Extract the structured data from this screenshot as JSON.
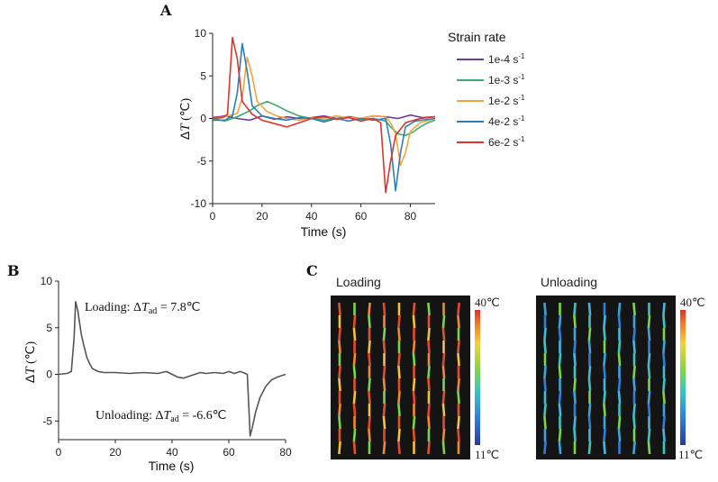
{
  "chart_data": [
    {
      "panel": "A",
      "type": "line",
      "title": "",
      "xlabel": "Time (s)",
      "ylabel": "ΔT (℃)",
      "xlim": [
        0,
        90
      ],
      "ylim": [
        -10,
        10
      ],
      "xticks": [
        0,
        20,
        40,
        60,
        80
      ],
      "yticks": [
        -10,
        -5,
        0,
        5,
        10
      ],
      "legend": {
        "title": "Strain rate",
        "position": "right"
      },
      "series": [
        {
          "name": "1e-4 s",
          "sup": "-1",
          "color": "#6a3d9a",
          "points": [
            [
              0,
              0.1
            ],
            [
              5,
              0.3
            ],
            [
              10,
              0.0
            ],
            [
              15,
              -0.2
            ],
            [
              20,
              0.3
            ],
            [
              25,
              -0.1
            ],
            [
              30,
              0.2
            ],
            [
              35,
              0.0
            ],
            [
              40,
              0.1
            ],
            [
              45,
              0.3
            ],
            [
              50,
              0.0
            ],
            [
              55,
              0.2
            ],
            [
              60,
              0.0
            ],
            [
              65,
              0.3
            ],
            [
              70,
              0.2
            ],
            [
              75,
              0.0
            ],
            [
              80,
              0.4
            ],
            [
              85,
              0.1
            ],
            [
              90,
              0.2
            ]
          ]
        },
        {
          "name": "1e-3 s",
          "sup": "-1",
          "color": "#3aaa6e",
          "points": [
            [
              0,
              0.0
            ],
            [
              5,
              -0.3
            ],
            [
              10,
              0.2
            ],
            [
              15,
              0.9
            ],
            [
              18,
              1.5
            ],
            [
              22,
              2.0
            ],
            [
              26,
              1.5
            ],
            [
              30,
              0.9
            ],
            [
              35,
              0.3
            ],
            [
              40,
              0.0
            ],
            [
              45,
              -0.2
            ],
            [
              50,
              0.0
            ],
            [
              55,
              0.1
            ],
            [
              60,
              -0.1
            ],
            [
              65,
              0.0
            ],
            [
              70,
              -0.3
            ],
            [
              72,
              -1.0
            ],
            [
              75,
              -1.8
            ],
            [
              78,
              -2.0
            ],
            [
              81,
              -1.6
            ],
            [
              84,
              -1.0
            ],
            [
              87,
              -0.5
            ],
            [
              90,
              -0.2
            ]
          ]
        },
        {
          "name": "1e-2 s",
          "sup": "-1",
          "color": "#f5a33a",
          "points": [
            [
              0,
              0.0
            ],
            [
              5,
              0.2
            ],
            [
              10,
              0.6
            ],
            [
              12,
              2.5
            ],
            [
              14,
              7.2
            ],
            [
              16,
              5.0
            ],
            [
              18,
              2.0
            ],
            [
              22,
              0.8
            ],
            [
              26,
              0.3
            ],
            [
              30,
              0.0
            ],
            [
              35,
              -0.2
            ],
            [
              40,
              0.1
            ],
            [
              45,
              0.0
            ],
            [
              50,
              0.3
            ],
            [
              55,
              0.1
            ],
            [
              60,
              0.0
            ],
            [
              65,
              0.3
            ],
            [
              70,
              0.2
            ],
            [
              72,
              -0.5
            ],
            [
              74,
              -1.8
            ],
            [
              76,
              -5.5
            ],
            [
              78,
              -4.0
            ],
            [
              80,
              -1.5
            ],
            [
              84,
              -0.5
            ],
            [
              90,
              0.0
            ]
          ]
        },
        {
          "name": "4e-2 s",
          "sup": "-1",
          "color": "#2b7fb8",
          "points": [
            [
              0,
              -0.2
            ],
            [
              5,
              -0.2
            ],
            [
              8,
              0.3
            ],
            [
              10,
              3.0
            ],
            [
              12,
              8.8
            ],
            [
              14,
              5.5
            ],
            [
              16,
              1.5
            ],
            [
              20,
              0.3
            ],
            [
              25,
              0.0
            ],
            [
              30,
              -0.2
            ],
            [
              35,
              0.1
            ],
            [
              40,
              0.0
            ],
            [
              45,
              -0.4
            ],
            [
              50,
              0.0
            ],
            [
              55,
              -0.3
            ],
            [
              60,
              0.0
            ],
            [
              65,
              -0.2
            ],
            [
              70,
              0.0
            ],
            [
              72,
              -3.0
            ],
            [
              74,
              -8.5
            ],
            [
              76,
              -4.0
            ],
            [
              78,
              -1.0
            ],
            [
              82,
              -0.3
            ],
            [
              90,
              0.0
            ]
          ]
        },
        {
          "name": "6e-2 s",
          "sup": "-1",
          "color": "#e0332b",
          "points": [
            [
              0,
              0.0
            ],
            [
              4,
              0.1
            ],
            [
              6,
              0.5
            ],
            [
              8,
              9.5
            ],
            [
              10,
              7.0
            ],
            [
              12,
              2.0
            ],
            [
              16,
              0.5
            ],
            [
              20,
              -0.2
            ],
            [
              25,
              -0.6
            ],
            [
              30,
              -1.0
            ],
            [
              35,
              -0.5
            ],
            [
              40,
              0.0
            ],
            [
              45,
              0.2
            ],
            [
              50,
              -0.1
            ],
            [
              55,
              0.1
            ],
            [
              60,
              -0.3
            ],
            [
              65,
              0.0
            ],
            [
              68,
              -0.5
            ],
            [
              70,
              -8.7
            ],
            [
              72,
              -5.0
            ],
            [
              74,
              -2.0
            ],
            [
              78,
              -0.5
            ],
            [
              84,
              0.0
            ],
            [
              90,
              0.2
            ]
          ]
        }
      ]
    },
    {
      "panel": "B",
      "type": "line",
      "xlabel": "Time (s)",
      "ylabel": "ΔT (℃)",
      "xlim": [
        0,
        80
      ],
      "ylim": [
        -7,
        10
      ],
      "xticks": [
        0,
        20,
        40,
        60,
        80
      ],
      "xtick_labels": [
        "0",
        "20",
        "40",
        "60",
        "80"
      ],
      "yticks": [
        -5,
        0,
        5,
        10
      ],
      "series": [
        {
          "name": "ΔT",
          "color": "#555555",
          "points": [
            [
              0,
              0.0
            ],
            [
              3,
              0.1
            ],
            [
              4.5,
              0.3
            ],
            [
              5.5,
              4.0
            ],
            [
              6,
              7.8
            ],
            [
              6.8,
              6.8
            ],
            [
              8,
              4.3
            ],
            [
              9,
              3.0
            ],
            [
              10,
              1.8
            ],
            [
              11,
              1.1
            ],
            [
              12,
              0.6
            ],
            [
              14,
              0.3
            ],
            [
              16,
              0.2
            ],
            [
              20,
              0.2
            ],
            [
              25,
              0.1
            ],
            [
              30,
              0.2
            ],
            [
              35,
              0.1
            ],
            [
              38,
              0.3
            ],
            [
              40,
              0.0
            ],
            [
              42,
              -0.3
            ],
            [
              44,
              -0.4
            ],
            [
              46,
              -0.2
            ],
            [
              48,
              0.0
            ],
            [
              50,
              0.2
            ],
            [
              52,
              0.1
            ],
            [
              55,
              0.2
            ],
            [
              58,
              0.1
            ],
            [
              60,
              0.3
            ],
            [
              62,
              0.1
            ],
            [
              64,
              0.3
            ],
            [
              65,
              0.2
            ],
            [
              66.5,
              0.0
            ],
            [
              67.2,
              -4.5
            ],
            [
              67.5,
              -6.6
            ],
            [
              68.2,
              -5.8
            ],
            [
              69.5,
              -4.0
            ],
            [
              71,
              -2.5
            ],
            [
              73,
              -1.3
            ],
            [
              75,
              -0.6
            ],
            [
              77,
              -0.3
            ],
            [
              80,
              0.0
            ]
          ]
        }
      ],
      "annotations": {
        "loading_prefix": "Loading: Δ",
        "loading_T": "T",
        "loading_sub": "ad",
        "loading_value": " = 7.8℃",
        "unloading_prefix": "Unloading: Δ",
        "unloading_T": "T",
        "unloading_sub": "ad",
        "unloading_value": " = -6.6℃"
      }
    },
    {
      "panel": "C",
      "type": "heatmap",
      "images": [
        {
          "title": "Loading",
          "state": "hot"
        },
        {
          "title": "Unloading",
          "state": "cold"
        }
      ],
      "colorbar": {
        "max_label": "40℃",
        "min_label": "11℃"
      }
    }
  ],
  "labels": {
    "panel_a": "A",
    "panel_b": "B",
    "panel_c": "C"
  },
  "axis_text": {
    "delta": "Δ",
    "T": "T",
    "unit": " (℃)"
  }
}
